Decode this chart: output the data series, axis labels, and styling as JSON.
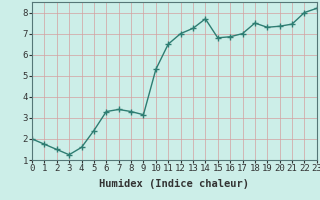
{
  "x": [
    0,
    1,
    2,
    3,
    4,
    5,
    6,
    7,
    8,
    9,
    10,
    11,
    12,
    13,
    14,
    15,
    16,
    17,
    18,
    19,
    20,
    21,
    22,
    23
  ],
  "y": [
    2.0,
    1.75,
    1.5,
    1.25,
    1.6,
    2.4,
    3.3,
    3.4,
    3.3,
    3.15,
    5.3,
    6.5,
    7.0,
    7.25,
    7.7,
    6.8,
    6.85,
    7.0,
    7.5,
    7.3,
    7.35,
    7.45,
    8.0,
    8.2
  ],
  "line_color": "#2e7d72",
  "marker": "+",
  "marker_size": 4,
  "bg_color": "#cceee8",
  "grid_color_x": "#d4a0a0",
  "grid_color_y": "#d4a0a0",
  "xlabel": "Humidex (Indice chaleur)",
  "xlim": [
    0,
    23
  ],
  "ylim": [
    1.0,
    8.5
  ],
  "yticks": [
    1,
    2,
    3,
    4,
    5,
    6,
    7,
    8
  ],
  "xticks": [
    0,
    1,
    2,
    3,
    4,
    5,
    6,
    7,
    8,
    9,
    10,
    11,
    12,
    13,
    14,
    15,
    16,
    17,
    18,
    19,
    20,
    21,
    22,
    23
  ],
  "xlabel_fontsize": 7.5,
  "tick_fontsize": 6.5,
  "axis_color": "#333333",
  "spine_color": "#557777",
  "line_width": 1.0
}
